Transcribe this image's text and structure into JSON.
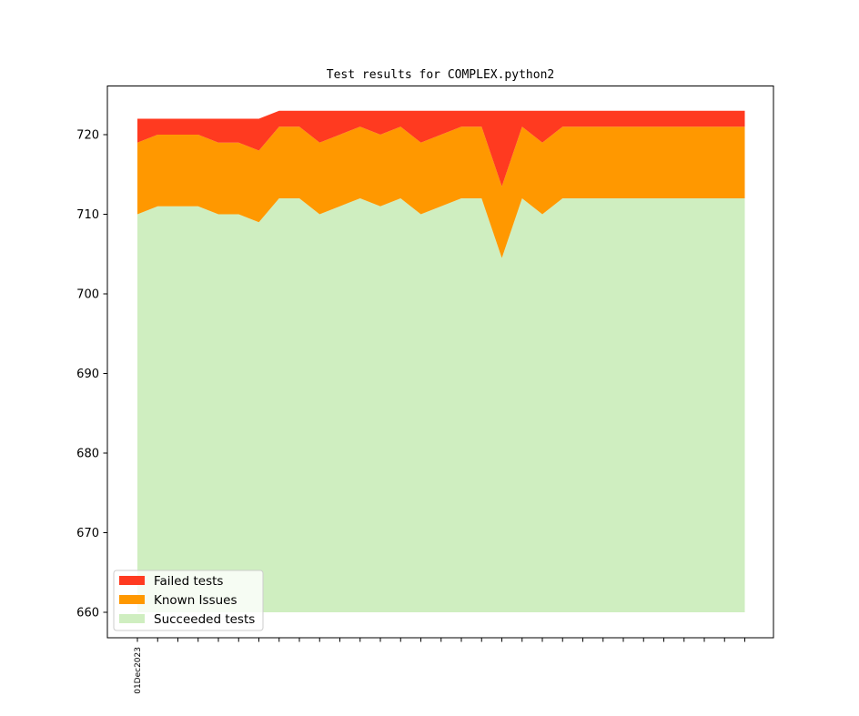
{
  "chart_data": {
    "type": "area",
    "title": "Test results for COMPLEX.python2",
    "xlabel": "",
    "ylabel": "",
    "x_tick_labels": [
      "01Dec2023"
    ],
    "ylim": [
      657.5,
      725
    ],
    "yticks": [
      660,
      670,
      680,
      690,
      700,
      710,
      720
    ],
    "baseline": 660,
    "legend_position": "lower-left",
    "grid": false,
    "series": [
      {
        "name": "Succeeded tests",
        "color": "#cfeec0",
        "values": [
          710,
          711,
          711,
          711,
          710,
          710,
          709,
          712,
          712,
          710,
          711,
          712,
          711,
          712,
          710,
          711,
          712,
          712,
          704.5,
          712,
          710,
          712,
          712,
          712,
          712,
          712,
          712,
          712,
          712,
          712,
          712
        ]
      },
      {
        "name": "Known Issues",
        "color": "#ff9800",
        "values": [
          9,
          9,
          9,
          9,
          9,
          9,
          9,
          9,
          9,
          9,
          9,
          9,
          9,
          9,
          9,
          9,
          9,
          9,
          9,
          9,
          9,
          9,
          9,
          9,
          9,
          9,
          9,
          9,
          9,
          9,
          9
        ]
      },
      {
        "name": "Failed tests",
        "color": "#ff3a20",
        "values": [
          3,
          2,
          2,
          2,
          3,
          3,
          4,
          2,
          2,
          4,
          3,
          2,
          3,
          2,
          4,
          3,
          2,
          2,
          9.5,
          2,
          4,
          2,
          2,
          2,
          2,
          2,
          2,
          2,
          2,
          2,
          2
        ]
      }
    ]
  }
}
